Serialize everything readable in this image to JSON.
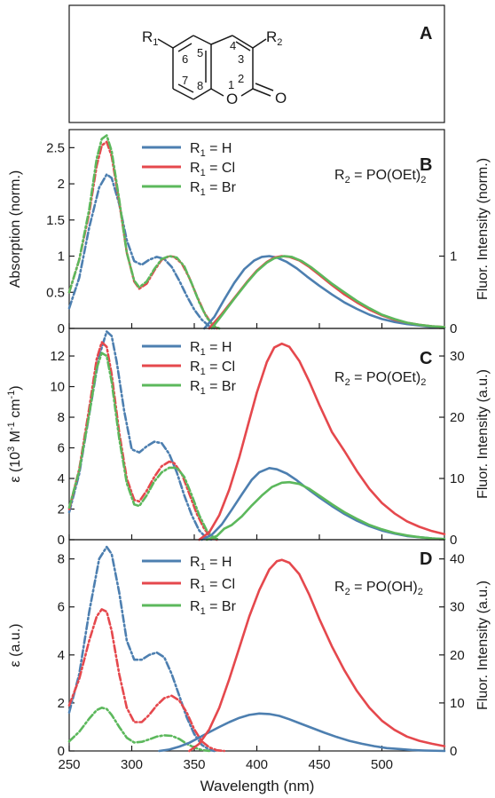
{
  "structure": {
    "panel_label": "A",
    "atoms": {
      "r1": "R",
      "r1_sub": "1",
      "r2": "R",
      "r2_sub": "2",
      "o_ring": "O",
      "o_carbonyl": "O"
    },
    "position_numbers": [
      "5",
      "4",
      "6",
      "3",
      "7",
      "8",
      "1",
      "2"
    ]
  },
  "shared_x_axis": {
    "label": "Wavelength (nm)",
    "range": [
      250,
      550
    ],
    "ticks": [
      "250",
      "300",
      "350",
      "400",
      "450",
      "500"
    ]
  },
  "legend": {
    "prefix": "R",
    "subscript": "1",
    "entries": [
      {
        "suffix": " = H",
        "color": "#4d7fb0"
      },
      {
        "suffix": " = Cl",
        "color": "#e5484d"
      },
      {
        "suffix": " = Br",
        "color": "#5cb85c"
      }
    ]
  },
  "colors": {
    "H": "#4d7fb0",
    "Cl": "#e5484d",
    "Br": "#5cb85c"
  },
  "chart_data": [
    {
      "panel_label": "B",
      "type": "line",
      "annotation": "R2 = PO(OEt)2",
      "annotation_parts": {
        "pre": "R",
        "sub": "2",
        "mid": " = PO(OEt)",
        "sub2": "2"
      },
      "ylabel": "Absorption (norm.)",
      "ylim": [
        0,
        2.75
      ],
      "yticks": [
        "0",
        "0.5",
        "1",
        "1.5",
        "2",
        "2.5"
      ],
      "y2label": "Fluor. Intensity (norm.)",
      "y2lim": [
        0,
        2.75
      ],
      "y2ticks": [
        "0",
        "1"
      ],
      "series": [
        {
          "name": "R1 = H",
          "key": "H",
          "kind": "absorption",
          "x": [
            250,
            258,
            266,
            274,
            280,
            284,
            290,
            296,
            302,
            308,
            314,
            320,
            326,
            332,
            338,
            344,
            350,
            356,
            362,
            366
          ],
          "y": [
            0.28,
            0.7,
            1.4,
            1.95,
            2.13,
            2.08,
            1.72,
            1.22,
            0.93,
            0.88,
            0.95,
            0.99,
            0.96,
            0.85,
            0.66,
            0.45,
            0.26,
            0.12,
            0.03,
            0.0
          ]
        },
        {
          "name": "R1 = Cl",
          "key": "Cl",
          "kind": "absorption",
          "x": [
            250,
            258,
            266,
            272,
            276,
            280,
            284,
            290,
            296,
            302,
            306,
            312,
            318,
            324,
            330,
            334,
            340,
            346,
            352,
            358,
            364,
            368
          ],
          "y": [
            0.5,
            0.95,
            1.6,
            2.25,
            2.53,
            2.58,
            2.38,
            1.75,
            1.05,
            0.65,
            0.55,
            0.62,
            0.8,
            0.95,
            1.0,
            0.99,
            0.9,
            0.7,
            0.45,
            0.22,
            0.06,
            0.0
          ]
        },
        {
          "name": "R1 = Br",
          "key": "Br",
          "kind": "absorption",
          "x": [
            250,
            258,
            266,
            272,
            276,
            280,
            284,
            290,
            296,
            302,
            306,
            312,
            318,
            324,
            330,
            336,
            342,
            348,
            354,
            360,
            366,
            370
          ],
          "y": [
            0.5,
            0.95,
            1.65,
            2.35,
            2.62,
            2.67,
            2.45,
            1.78,
            1.05,
            0.66,
            0.57,
            0.65,
            0.82,
            0.96,
            1.0,
            0.98,
            0.86,
            0.62,
            0.36,
            0.15,
            0.03,
            0.0
          ]
        },
        {
          "name": "R1 = H",
          "key": "H",
          "kind": "fluorescence",
          "x": [
            358,
            366,
            374,
            382,
            390,
            398,
            404,
            410,
            416,
            424,
            432,
            440,
            450,
            460,
            470,
            480,
            490,
            500,
            510,
            520,
            530,
            540,
            550
          ],
          "y": [
            0.0,
            0.16,
            0.4,
            0.63,
            0.82,
            0.94,
            0.99,
            1.0,
            0.98,
            0.92,
            0.83,
            0.72,
            0.59,
            0.47,
            0.36,
            0.27,
            0.19,
            0.13,
            0.09,
            0.06,
            0.04,
            0.02,
            0.01
          ]
        },
        {
          "name": "R1 = Cl",
          "key": "Cl",
          "kind": "fluorescence",
          "x": [
            362,
            372,
            382,
            392,
            400,
            408,
            414,
            420,
            426,
            434,
            442,
            450,
            460,
            470,
            480,
            490,
            500,
            510,
            520,
            530,
            540,
            550
          ],
          "y": [
            0.0,
            0.2,
            0.42,
            0.64,
            0.8,
            0.92,
            0.98,
            1.0,
            0.99,
            0.94,
            0.85,
            0.74,
            0.6,
            0.47,
            0.36,
            0.26,
            0.18,
            0.12,
            0.08,
            0.05,
            0.03,
            0.02
          ]
        },
        {
          "name": "R1 = Br",
          "key": "Br",
          "kind": "fluorescence",
          "x": [
            364,
            372,
            382,
            392,
            400,
            408,
            414,
            422,
            428,
            436,
            444,
            452,
            460,
            470,
            480,
            490,
            500,
            510,
            520,
            530,
            540,
            550
          ],
          "y": [
            0.0,
            0.18,
            0.41,
            0.63,
            0.79,
            0.91,
            0.97,
            1.0,
            0.99,
            0.93,
            0.84,
            0.73,
            0.62,
            0.5,
            0.38,
            0.28,
            0.19,
            0.13,
            0.08,
            0.05,
            0.03,
            0.02
          ]
        }
      ]
    },
    {
      "panel_label": "C",
      "type": "line",
      "annotation": "R2 = PO(OEt)2",
      "annotation_parts": {
        "pre": "R",
        "sub": "2",
        "mid": " = PO(OEt)",
        "sub2": "2"
      },
      "ylabel": "ε (10³ M⁻¹ cm⁻¹)",
      "ylabel_parts": {
        "a": "ε  (10",
        "sup1": "3",
        "b": " M",
        "sup2": "-1",
        "c": " cm",
        "sup3": "-1",
        "d": ")"
      },
      "ylim": [
        0,
        13.8
      ],
      "yticks": [
        "0",
        "2",
        "4",
        "6",
        "8",
        "10",
        "12"
      ],
      "y2label": "Fluor. Intensity (a.u.)",
      "y2lim": [
        0,
        34.5
      ],
      "y2ticks": [
        "0",
        "10",
        "20",
        "30"
      ],
      "series": [
        {
          "name": "R1 = H",
          "key": "H",
          "kind": "absorption",
          "x": [
            250,
            258,
            266,
            274,
            280,
            284,
            288,
            294,
            300,
            306,
            312,
            318,
            324,
            330,
            336,
            342,
            348,
            354,
            360,
            364
          ],
          "y": [
            1.8,
            4.3,
            8.2,
            12.0,
            13.6,
            13.3,
            11.6,
            8.4,
            5.9,
            5.7,
            6.1,
            6.4,
            6.3,
            5.6,
            4.4,
            2.9,
            1.6,
            0.6,
            0.1,
            0.0
          ]
        },
        {
          "name": "R1 = Cl",
          "key": "Cl",
          "kind": "absorption",
          "x": [
            250,
            258,
            266,
            272,
            276,
            280,
            284,
            290,
            296,
            302,
            306,
            312,
            318,
            324,
            330,
            334,
            340,
            346,
            352,
            358,
            364,
            368
          ],
          "y": [
            2.0,
            4.6,
            8.6,
            11.8,
            12.9,
            12.6,
            10.8,
            7.0,
            4.0,
            2.6,
            2.5,
            3.2,
            4.1,
            4.8,
            5.1,
            5.0,
            4.3,
            3.0,
            1.7,
            0.7,
            0.1,
            0.0
          ]
        },
        {
          "name": "R1 = Br",
          "key": "Br",
          "kind": "absorption",
          "x": [
            250,
            258,
            266,
            272,
            276,
            280,
            284,
            290,
            296,
            302,
            306,
            312,
            318,
            324,
            330,
            336,
            342,
            348,
            354,
            360,
            366,
            370
          ],
          "y": [
            2.1,
            4.5,
            8.2,
            11.2,
            12.2,
            12.0,
            10.3,
            6.6,
            3.7,
            2.3,
            2.2,
            2.9,
            3.8,
            4.4,
            4.7,
            4.7,
            4.1,
            2.9,
            1.6,
            0.6,
            0.1,
            0.0
          ]
        },
        {
          "name": "R1 = H",
          "key": "H",
          "kind": "fluorescence",
          "x": [
            356,
            364,
            372,
            380,
            388,
            396,
            402,
            410,
            416,
            424,
            432,
            440,
            450,
            460,
            470,
            480,
            490,
            500,
            510,
            520,
            530,
            540,
            550
          ],
          "y": [
            0.0,
            0.8,
            2.5,
            4.9,
            7.4,
            9.8,
            11.0,
            11.7,
            11.5,
            10.8,
            9.7,
            8.4,
            6.9,
            5.5,
            4.2,
            3.1,
            2.2,
            1.5,
            1.0,
            0.6,
            0.4,
            0.2,
            0.1
          ]
        },
        {
          "name": "R1 = Cl",
          "key": "Cl",
          "kind": "fluorescence",
          "x": [
            354,
            362,
            370,
            378,
            386,
            394,
            400,
            408,
            414,
            420,
            426,
            434,
            442,
            450,
            460,
            470,
            480,
            490,
            500,
            510,
            520,
            530,
            540,
            550
          ],
          "y": [
            0.0,
            1.2,
            4.0,
            8.2,
            13.5,
            19.5,
            24.0,
            29.0,
            31.4,
            32.0,
            31.5,
            29.2,
            25.8,
            22.0,
            17.6,
            14.5,
            11.2,
            8.3,
            6.0,
            4.3,
            3.0,
            2.1,
            1.4,
            0.9
          ]
        },
        {
          "name": "R1 = Br",
          "key": "Br",
          "kind": "fluorescence",
          "x": [
            360,
            368,
            374,
            380,
            388,
            396,
            404,
            412,
            420,
            426,
            434,
            442,
            450,
            460,
            470,
            480,
            490,
            500,
            510,
            520,
            530,
            540,
            550
          ],
          "y": [
            0.0,
            0.6,
            1.8,
            2.4,
            3.8,
            5.6,
            7.2,
            8.6,
            9.3,
            9.4,
            9.1,
            8.3,
            7.2,
            5.8,
            4.5,
            3.4,
            2.4,
            1.7,
            1.1,
            0.7,
            0.4,
            0.2,
            0.1
          ]
        }
      ]
    },
    {
      "panel_label": "D",
      "type": "line",
      "annotation": "R2 = PO(OH)2",
      "annotation_parts": {
        "pre": "R",
        "sub": "2",
        "mid": " = PO(OH)",
        "sub2": "2"
      },
      "ylabel": "ε (a.u.)",
      "ylim": [
        0,
        8.8
      ],
      "yticks": [
        "0",
        "2",
        "4",
        "6",
        "8"
      ],
      "y2label": "Fluor. Intensity (a.u.)",
      "y2lim": [
        0,
        44
      ],
      "y2ticks": [
        "0",
        "10",
        "20",
        "30",
        "40"
      ],
      "series": [
        {
          "name": "R1 = H",
          "key": "H",
          "kind": "absorption",
          "x": [
            250,
            258,
            266,
            274,
            280,
            284,
            290,
            296,
            302,
            308,
            314,
            320,
            326,
            332,
            338,
            344,
            350,
            356,
            362,
            366
          ],
          "y": [
            1.6,
            3.2,
            5.8,
            8.0,
            8.5,
            8.2,
            6.6,
            4.6,
            3.8,
            3.8,
            4.0,
            4.1,
            3.9,
            3.2,
            2.3,
            1.4,
            0.7,
            0.25,
            0.05,
            0.0
          ]
        },
        {
          "name": "R1 = Cl",
          "key": "Cl",
          "kind": "absorption",
          "x": [
            250,
            258,
            266,
            272,
            276,
            280,
            284,
            290,
            296,
            302,
            308,
            314,
            320,
            326,
            332,
            338,
            344,
            350,
            356,
            362,
            368,
            374
          ],
          "y": [
            1.9,
            3.0,
            4.6,
            5.6,
            5.9,
            5.8,
            5.0,
            3.2,
            1.8,
            1.2,
            1.2,
            1.5,
            1.9,
            2.2,
            2.3,
            2.1,
            1.6,
            0.9,
            0.4,
            0.15,
            0.03,
            0.0
          ]
        },
        {
          "name": "R1 = Br",
          "key": "Br",
          "kind": "absorption",
          "x": [
            250,
            258,
            266,
            272,
            276,
            280,
            284,
            290,
            296,
            302,
            308,
            314,
            320,
            326,
            332,
            338,
            344,
            350,
            356,
            362
          ],
          "y": [
            0.4,
            0.8,
            1.35,
            1.7,
            1.8,
            1.75,
            1.5,
            1.0,
            0.55,
            0.35,
            0.38,
            0.48,
            0.6,
            0.65,
            0.63,
            0.5,
            0.3,
            0.14,
            0.04,
            0.0
          ]
        },
        {
          "name": "R1 = H",
          "key": "H",
          "kind": "fluorescence",
          "x": [
            322,
            330,
            338,
            346,
            354,
            362,
            370,
            378,
            386,
            394,
            402,
            410,
            418,
            426,
            434,
            444,
            454,
            464,
            474,
            484,
            494,
            504,
            514,
            524,
            534,
            550
          ],
          "y": [
            0.0,
            0.3,
            0.9,
            1.7,
            2.8,
            3.9,
            5.0,
            6.0,
            6.9,
            7.5,
            7.8,
            7.7,
            7.3,
            6.6,
            5.8,
            4.8,
            3.8,
            2.9,
            2.1,
            1.5,
            1.0,
            0.6,
            0.4,
            0.2,
            0.1,
            0.0
          ]
        },
        {
          "name": "R1 = Cl",
          "key": "Cl",
          "kind": "fluorescence",
          "x": [
            346,
            354,
            362,
            370,
            378,
            386,
            394,
            402,
            410,
            416,
            420,
            426,
            434,
            442,
            450,
            460,
            470,
            480,
            490,
            500,
            510,
            520,
            530,
            540,
            550
          ],
          "y": [
            0.0,
            1.5,
            4.5,
            9.0,
            15.0,
            21.5,
            28.0,
            33.5,
            37.8,
            39.5,
            39.8,
            39.2,
            36.8,
            32.5,
            27.5,
            21.8,
            16.8,
            12.5,
            9.0,
            6.3,
            4.4,
            3.0,
            2.1,
            1.5,
            1.0
          ]
        }
      ]
    }
  ]
}
